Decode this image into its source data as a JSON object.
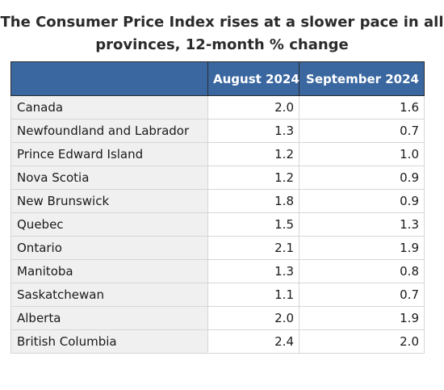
{
  "chart_data": {
    "type": "table",
    "title_line1": "The Consumer Price Index rises at a slower pace in all",
    "title_line2": "provinces, 12-month % change",
    "columns": [
      "",
      "August 2024",
      "September 2024"
    ],
    "rows": [
      {
        "label": "Canada",
        "aug": "2.0",
        "sep": "1.6"
      },
      {
        "label": "Newfoundland and Labrador",
        "aug": "1.3",
        "sep": "0.7"
      },
      {
        "label": "Prince Edward Island",
        "aug": "1.2",
        "sep": "1.0"
      },
      {
        "label": "Nova Scotia",
        "aug": "1.2",
        "sep": "0.9"
      },
      {
        "label": "New Brunswick",
        "aug": "1.8",
        "sep": "0.9"
      },
      {
        "label": "Quebec",
        "aug": "1.5",
        "sep": "1.3"
      },
      {
        "label": "Ontario",
        "aug": "2.1",
        "sep": "1.9"
      },
      {
        "label": "Manitoba",
        "aug": "1.3",
        "sep": "0.8"
      },
      {
        "label": "Saskatchewan",
        "aug": "1.1",
        "sep": "0.7"
      },
      {
        "label": "Alberta",
        "aug": "2.0",
        "sep": "1.9"
      },
      {
        "label": "British Columbia",
        "aug": "2.4",
        "sep": "2.0"
      }
    ]
  },
  "colors": {
    "header_background": "#3a67a0",
    "header_text": "#ffffff",
    "label_cell_background": "#f0f0f0"
  }
}
